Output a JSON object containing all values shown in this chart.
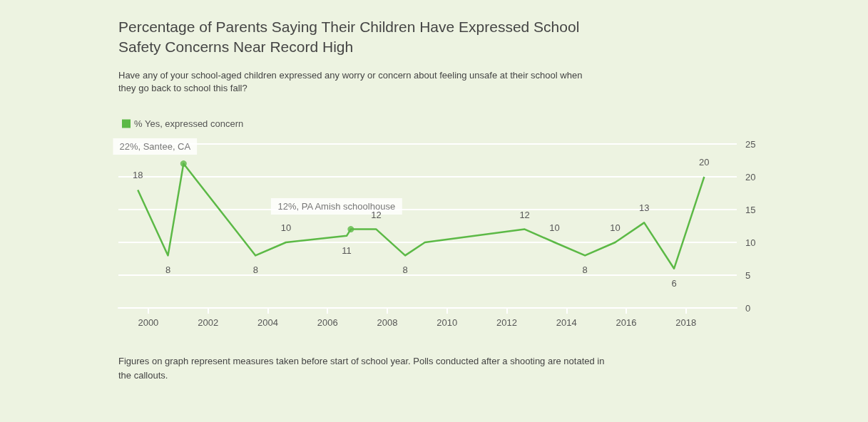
{
  "chart_data": {
    "type": "line",
    "title": "Percentage of Parents Saying Their Children Have Expressed School Safety Concerns Near Record High",
    "subtitle": "Have any of your school-aged children expressed any worry or concern about feeling unsafe at their school when they go back to school this fall?",
    "x": [
      1999.65,
      2000.66,
      2001.18,
      2003.59,
      2004.61,
      2006.64,
      2006.78,
      2007.63,
      2008.6,
      2009.26,
      2012.6,
      2013.6,
      2014.62,
      2015.63,
      2016.6,
      2017.6,
      2018.61
    ],
    "series": [
      {
        "name": "% Yes, expressed concern",
        "color": "#5cb946",
        "values": [
          18,
          8,
          22,
          8,
          10,
          11,
          12,
          12,
          8,
          10,
          12,
          10,
          8,
          10,
          13,
          6,
          20
        ],
        "value_labels": [
          "18",
          "8",
          null,
          "8",
          "10",
          "11",
          null,
          "12",
          "8",
          null,
          "12",
          "10",
          "8",
          "10",
          "13",
          "6",
          "20"
        ]
      }
    ],
    "xlim": [
      1999,
      2019.7
    ],
    "xticks": [
      2000,
      2002,
      2004,
      2006,
      2008,
      2010,
      2012,
      2014,
      2016,
      2018
    ],
    "ylim": [
      0,
      25
    ],
    "yticks": [
      0,
      5,
      10,
      15,
      20,
      25
    ],
    "grid": "y",
    "legend": "top left",
    "marker": "none",
    "line_style": "solid",
    "annotations": [
      {
        "text": "22%, Santee, CA",
        "x": 2001.18,
        "y": 22
      },
      {
        "text": "12%, PA Amish schoolhouse",
        "x": 2006.78,
        "y": 12
      },
      "Figures on graph represent measures taken before start of school year. Polls conducted after a shooting are notated in the callouts."
    ]
  }
}
